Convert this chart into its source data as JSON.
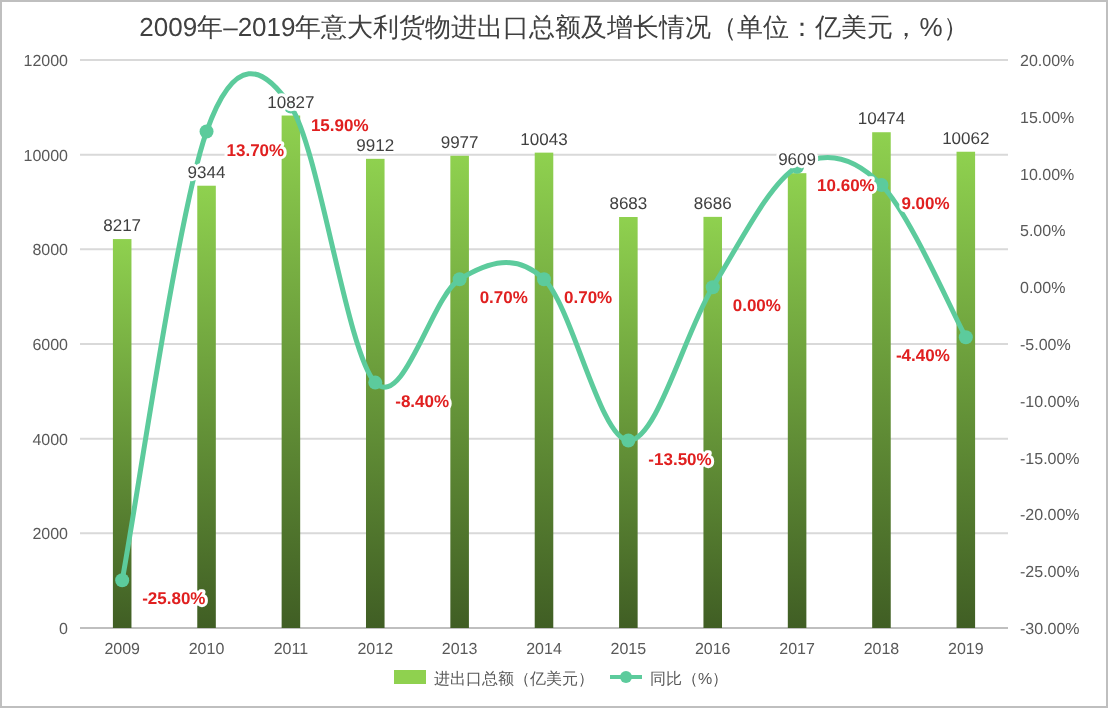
{
  "chart_data": {
    "type": "bar",
    "title": "2009年–2019年意大利货物进出口总额及增长情况（单位：亿美元，%）",
    "categories": [
      "2009",
      "2010",
      "2011",
      "2012",
      "2013",
      "2014",
      "2015",
      "2016",
      "2017",
      "2018",
      "2019"
    ],
    "series": [
      {
        "name": "进出口总额（亿美元）",
        "color": "#8fd14f",
        "values": [
          8217,
          9344,
          10827,
          9912,
          9977,
          10043,
          8683,
          8686,
          9609,
          10474,
          10062
        ],
        "value_labels": [
          "8217",
          "9344",
          "10827",
          "9912",
          "9977",
          "10043",
          "8683",
          "8686",
          "9609",
          "10474",
          "10062"
        ]
      },
      {
        "name": "同比（%）",
        "type": "line",
        "axis": "y2",
        "color": "#5ccb9c",
        "marker": "circle",
        "values": [
          -25.8,
          13.7,
          15.9,
          -8.4,
          0.7,
          0.7,
          -13.5,
          0.0,
          10.6,
          9.0,
          -4.4
        ],
        "value_labels": [
          "-25.80%",
          "13.70%",
          "15.90%",
          "-8.40%",
          "0.70%",
          "0.70%",
          "-13.50%",
          "0.00%",
          "10.60%",
          "9.00%",
          "-4.40%"
        ]
      }
    ],
    "ylim": [
      0,
      12000
    ],
    "yticks": [
      0,
      2000,
      4000,
      6000,
      8000,
      10000,
      12000
    ],
    "y2lim": [
      -30,
      20
    ],
    "y2ticks": [
      {
        "value": -30,
        "label": "-30.00%"
      },
      {
        "value": -25,
        "label": "-25.00%"
      },
      {
        "value": -20,
        "label": "-20.00%"
      },
      {
        "value": -15,
        "label": "-15.00%"
      },
      {
        "value": -10,
        "label": "-10.00%"
      },
      {
        "value": -5,
        "label": "-5.00%"
      },
      {
        "value": 0,
        "label": "0.00%"
      },
      {
        "value": 5,
        "label": "5.00%"
      },
      {
        "value": 10,
        "label": "10.00%"
      },
      {
        "value": 15,
        "label": "15.00%"
      },
      {
        "value": 20,
        "label": "20.00%"
      }
    ],
    "grid": "y",
    "legend": "bottom"
  }
}
